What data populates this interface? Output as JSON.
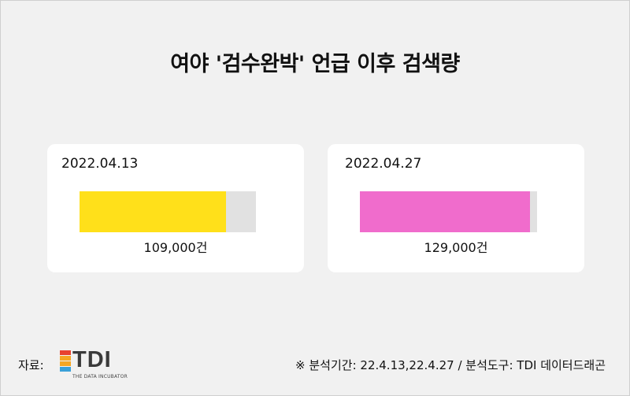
{
  "title": "여야 '검수완박' 언급 이후 검색량",
  "colors": {
    "background": "#f1f1f1",
    "card": "#ffffff",
    "track": "#e1e1e1",
    "series_1": "#ffe01a",
    "series_2": "#f06ccc"
  },
  "chart_data": [
    {
      "type": "bar",
      "category": "2022.04.13",
      "value": 109000,
      "value_label": "109,000건",
      "fill_fraction": 0.83,
      "color": "#ffe01a"
    },
    {
      "type": "bar",
      "category": "2022.04.27",
      "value": 129000,
      "value_label": "129,000건",
      "fill_fraction": 0.96,
      "color": "#f06ccc"
    }
  ],
  "footer": {
    "source_label": "자료:",
    "logo_text": "TDI",
    "logo_sub": "THE DATA INCUBATOR",
    "logo_colors": [
      "#e8422f",
      "#f5a623",
      "#3aa0d8"
    ],
    "footnote": "※ 분석기간: 22.4.13,22.4.27 / 분석도구: TDI 데이터드래곤"
  }
}
